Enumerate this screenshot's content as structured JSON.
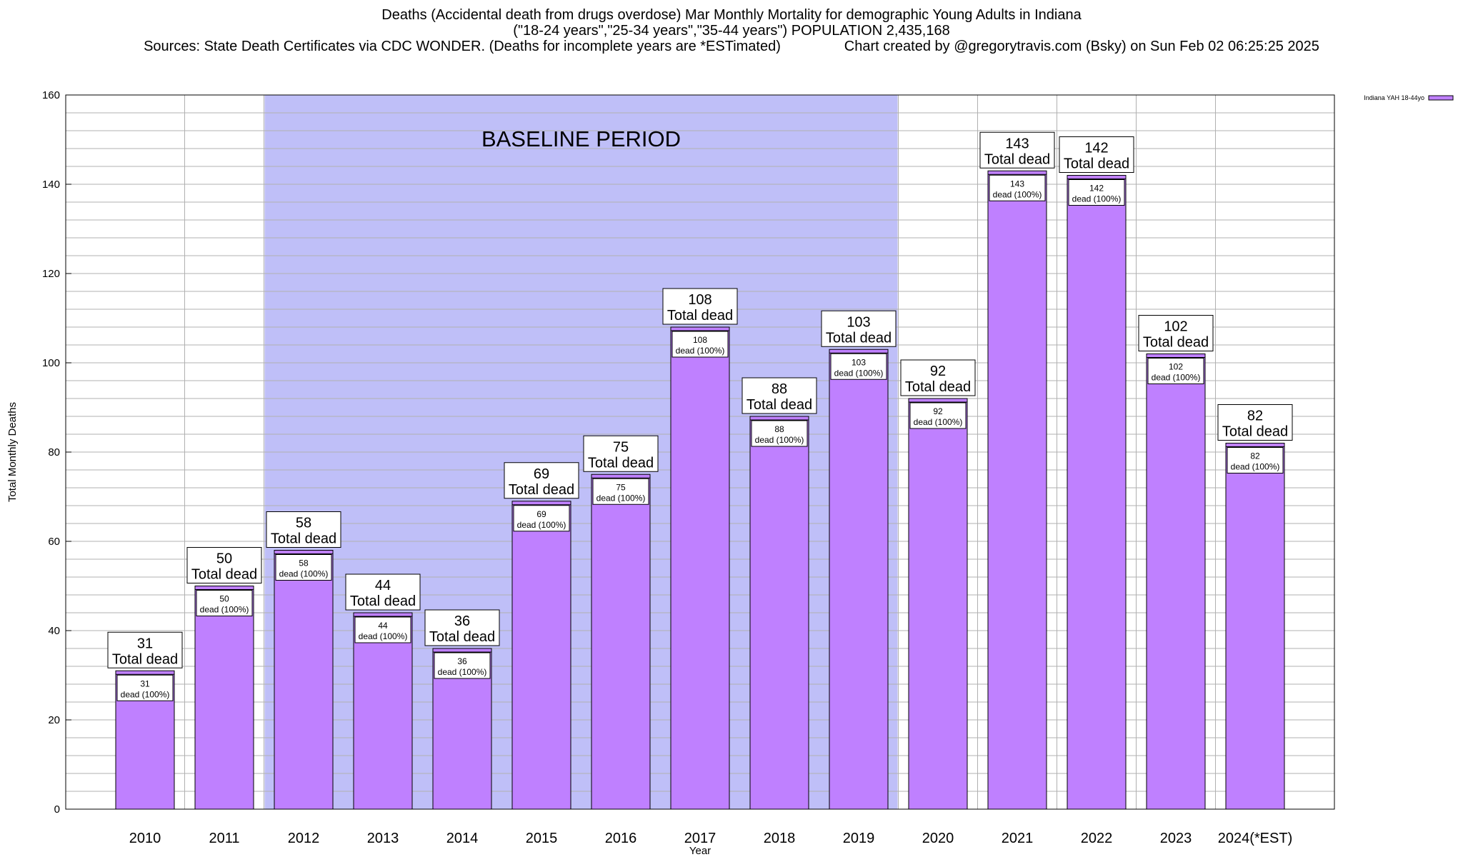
{
  "header": {
    "line1": "Deaths (Accidental death from drugs overdose) Mar Monthly Mortality for demographic Young Adults in Indiana",
    "line2": "(\"18-24 years\",\"25-34 years\",\"35-44 years\") POPULATION 2,435,168",
    "line3_left": "Sources: State Death Certificates via CDC WONDER. (Deaths for incomplete years are *ESTimated)",
    "line3_right": "Chart created by @gregorytravis.com (Bsky) on Sun Feb 02 06:25:25 2025"
  },
  "colors": {
    "bar": "#bf80ff",
    "baseline_band": "#bfbff8",
    "grid": "#b0b0b0"
  },
  "chart_data": {
    "type": "bar",
    "title": "Deaths (Accidental death from drugs overdose) Mar Monthly Mortality for demographic Young Adults in Indiana",
    "xlabel": "Year",
    "ylabel": "Total Monthly Deaths",
    "ylim": [
      0,
      160
    ],
    "yticks": [
      0,
      20,
      40,
      60,
      80,
      100,
      120,
      140,
      160
    ],
    "grid": true,
    "legend_position": "top-right",
    "categories": [
      "2010",
      "2011",
      "2012",
      "2013",
      "2014",
      "2015",
      "2016",
      "2017",
      "2018",
      "2019",
      "2020",
      "2021",
      "2022",
      "2023",
      "2024(*EST)"
    ],
    "series": [
      {
        "name": "Indiana YAH 18-44yo",
        "values": [
          31,
          50,
          58,
          44,
          36,
          69,
          75,
          108,
          88,
          103,
          92,
          143,
          142,
          102,
          82
        ]
      }
    ],
    "labels": {
      "total_suffix": "Total dead",
      "inner_suffix": "dead (100%)"
    },
    "annotations": [
      {
        "text": "BASELINE PERIOD",
        "from_category": "2012",
        "to_category": "2019"
      }
    ]
  }
}
